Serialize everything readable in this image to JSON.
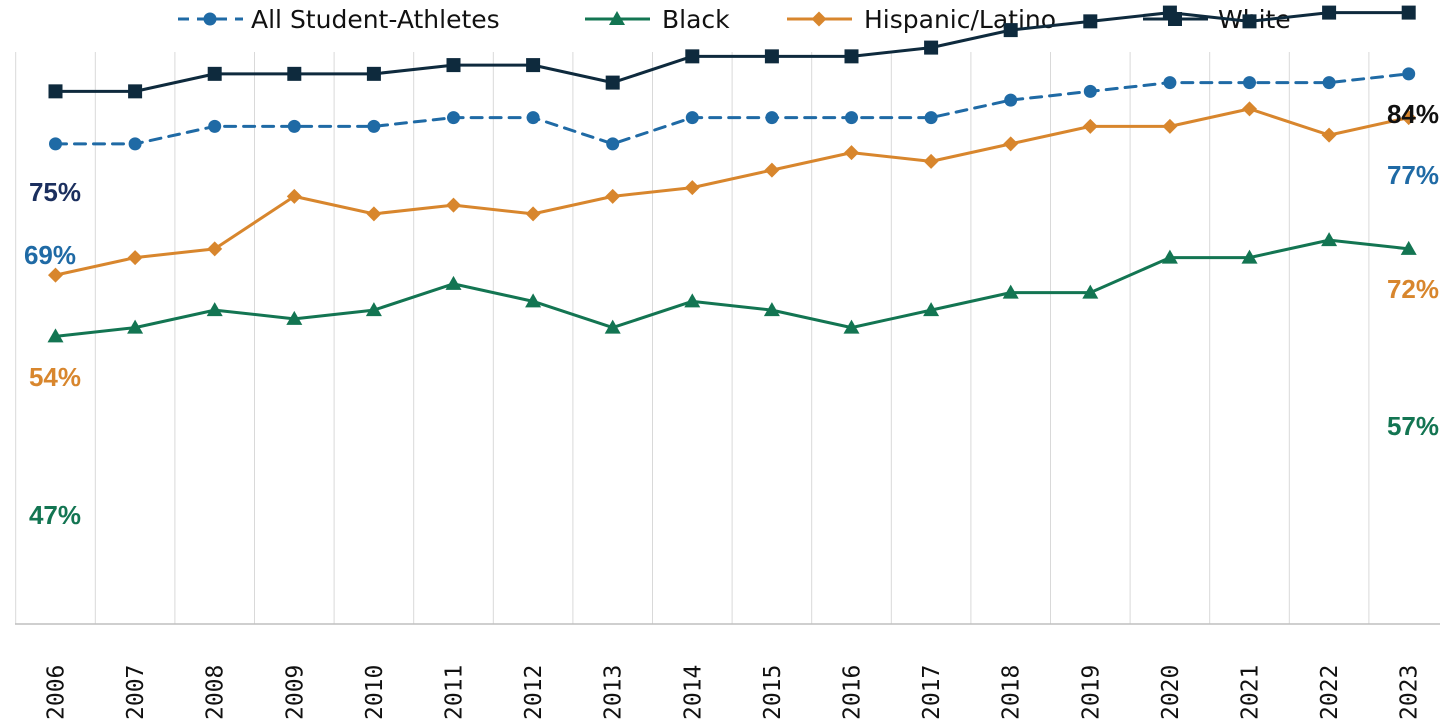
{
  "chart_data": {
    "type": "line",
    "title": "",
    "xlabel": "",
    "ylabel": "",
    "ylim": [
      30,
      90
    ],
    "grid": "vertical",
    "legend": "top",
    "categories": [
      "2006",
      "2007",
      "2008",
      "2009",
      "2010",
      "2011",
      "2012",
      "2013",
      "2014",
      "2015",
      "2016",
      "2017",
      "2018",
      "2019",
      "2020",
      "2021",
      "2022",
      "2023"
    ],
    "series": [
      {
        "name": "All Student-Athletes",
        "key": "all",
        "color": "#1f6aa5",
        "marker": "circle",
        "dashed": true,
        "values": [
          69,
          69,
          71,
          71,
          71,
          72,
          72,
          69,
          72,
          72,
          72,
          72,
          74,
          75,
          76,
          76,
          76,
          77
        ],
        "labels": {
          "first": "69%",
          "last": "77%"
        }
      },
      {
        "name": "Black",
        "key": "black",
        "color": "#137552",
        "marker": "triangle",
        "dashed": false,
        "values": [
          47,
          48,
          50,
          49,
          50,
          53,
          51,
          48,
          51,
          50,
          48,
          50,
          52,
          52,
          56,
          56,
          58,
          57
        ],
        "labels": {
          "first": "47%",
          "last": "57%"
        }
      },
      {
        "name": "Hispanic/Latino",
        "key": "hispanic",
        "color": "#d8862d",
        "marker": "diamond",
        "dashed": false,
        "values": [
          54,
          56,
          57,
          63,
          61,
          62,
          61,
          63,
          64,
          66,
          68,
          67,
          69,
          71,
          71,
          73,
          70,
          72
        ],
        "labels": {
          "first": "54%",
          "last": "72%"
        }
      },
      {
        "name": "White",
        "key": "white",
        "color": "#0e2a3d",
        "marker": "square",
        "dashed": false,
        "values": [
          75,
          75,
          77,
          77,
          77,
          78,
          78,
          76,
          79,
          79,
          79,
          80,
          82,
          83,
          84,
          83,
          84,
          84
        ],
        "labels": {
          "first": "75%",
          "last": "84%"
        }
      }
    ],
    "label_colors": {
      "all": "#1f6aa5",
      "black": "#137552",
      "hispanic": "#d8862d",
      "white_first": "#1b2f5e",
      "white_last": "#111111"
    }
  }
}
